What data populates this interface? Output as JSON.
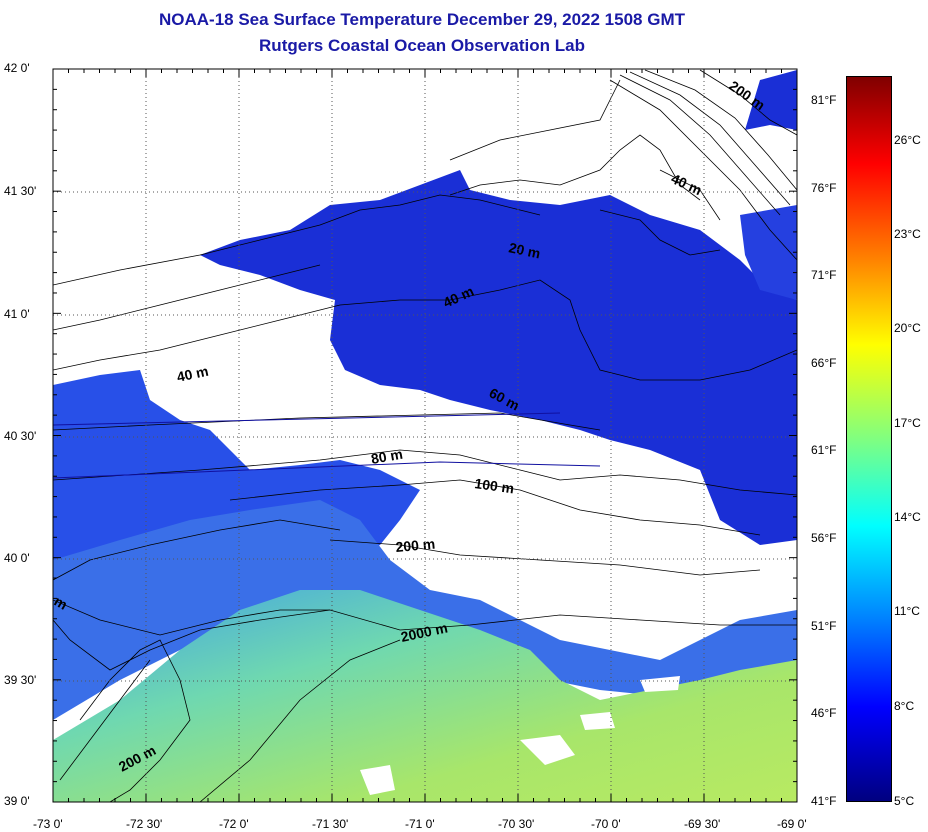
{
  "title": "NOAA-18 Sea Surface Temperature December 29, 2022 1508 GMT",
  "subtitle": "Rutgers Coastal Ocean Observation Lab",
  "lat_labels": [
    "42 0'",
    "41 30'",
    "41 0'",
    "40 30'",
    "40 0'",
    "39 30'",
    "39 0'"
  ],
  "lon_labels": [
    "-73 0'",
    "-72 30'",
    "-72 0'",
    "-71 30'",
    "-71 0'",
    "-70 30'",
    "-70 0'",
    "-69 30'",
    "-69 0'"
  ],
  "colorbar": {
    "fahrenheit": [
      "81°F",
      "76°F",
      "71°F",
      "66°F",
      "61°F",
      "56°F",
      "51°F",
      "46°F",
      "41°F"
    ],
    "celsius": [
      "26°C",
      "23°C",
      "20°C",
      "17°C",
      "14°C",
      "11°C",
      "8°C",
      "5°C"
    ],
    "range_c": [
      5,
      27.5
    ],
    "colors": [
      "#000080",
      "#0000ff",
      "#0080ff",
      "#00ffff",
      "#80ff80",
      "#ffff00",
      "#ff8000",
      "#ff0000",
      "#800000"
    ]
  },
  "contours": [
    "200 m",
    "40 m",
    "20 m",
    "40 m",
    "40 m",
    "60 m",
    "80 m",
    "100 m",
    "200 m",
    "2000 m",
    "200 m",
    "m"
  ],
  "colors": {
    "title": "#1a1aa6",
    "land_cloud": "#ffffff",
    "cold_water": "#1a2fd6",
    "mid_water": "#3f7fe8",
    "warm_water": "#9ee07a",
    "warmest_water": "#c8ee60"
  }
}
